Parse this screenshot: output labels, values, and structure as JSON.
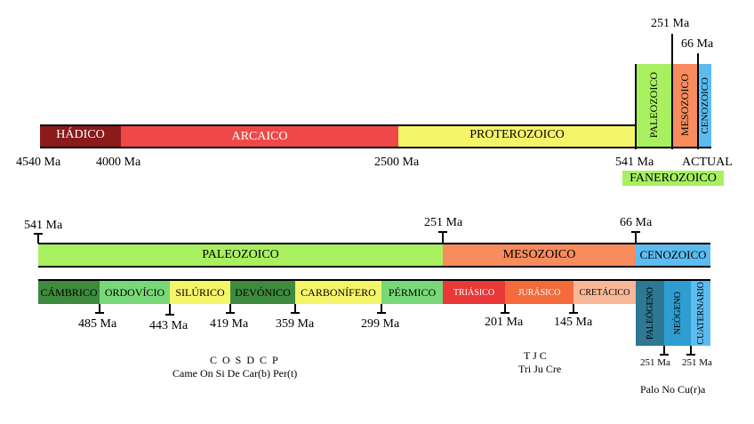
{
  "top": {
    "hadico": "HÁDICO",
    "arcaico": "ARCAICO",
    "proterozoico": "PROTEROZOICO",
    "paleozoico": "PALEOZOICO",
    "mesozoico": "MESOZOICO",
    "cenozoico": "CENOZOICO",
    "ticks": [
      "4540 Ma",
      "4000 Ma",
      "2500 Ma",
      "541 Ma",
      "ACTUAL"
    ],
    "upper_ticks": [
      "251 Ma",
      "66 Ma"
    ],
    "fanerozoico": "FANEROZOICO"
  },
  "bottom": {
    "eras": [
      "PALEOZOICO",
      "MESOZOICO",
      "CENOZOICO"
    ],
    "era_ticks": [
      "541 Ma",
      "251 Ma",
      "66 Ma"
    ],
    "periods": [
      "CÁMBRICO",
      "ORDOVÍCIO",
      "SILÚRICO",
      "DEVÓNICO",
      "CARBONÍFERO",
      "PÉRMICO",
      "TRIÁSICO",
      "JURÁSICO",
      "CRETÁCICO",
      "PALEÓGENO",
      "NEÓGENO",
      "CUATERNARIO"
    ],
    "period_ticks": [
      "485 Ma",
      "443 Ma",
      "419 Ma",
      "359 Ma",
      "299 Ma",
      "201 Ma",
      "145 Ma",
      "251 Ma",
      "251 Ma"
    ],
    "mnemonic_paleozoic": [
      "C O S D C P",
      "Came On Si De Car(b) Per(t)"
    ],
    "mnemonic_mesozoic": [
      "T J C",
      "Tri Ju Cre"
    ],
    "mnemonic_cenozoic": "Palo No Cu(r)a"
  },
  "colors": {
    "hadico": "#8b1a1a",
    "arcaico": "#f04848",
    "proterozoico": "#f5f56a",
    "paleozoico": "#a8f060",
    "mesozoico": "#f88c5c",
    "cenozoico": "#5cbcf0",
    "cambrico": "#3e8a3e",
    "ordovicio": "#78d878",
    "silurico": "#f5f56a",
    "devonico": "#3e8a3e",
    "carbonifero": "#f5f56a",
    "permico": "#78d878",
    "triasico": "#e83838",
    "jurasico": "#f46a3a",
    "cretacico": "#f8b898",
    "paleogeno": "#2e7894",
    "neogeno": "#2e9ed0",
    "cuaternario": "#5cbcf0"
  }
}
